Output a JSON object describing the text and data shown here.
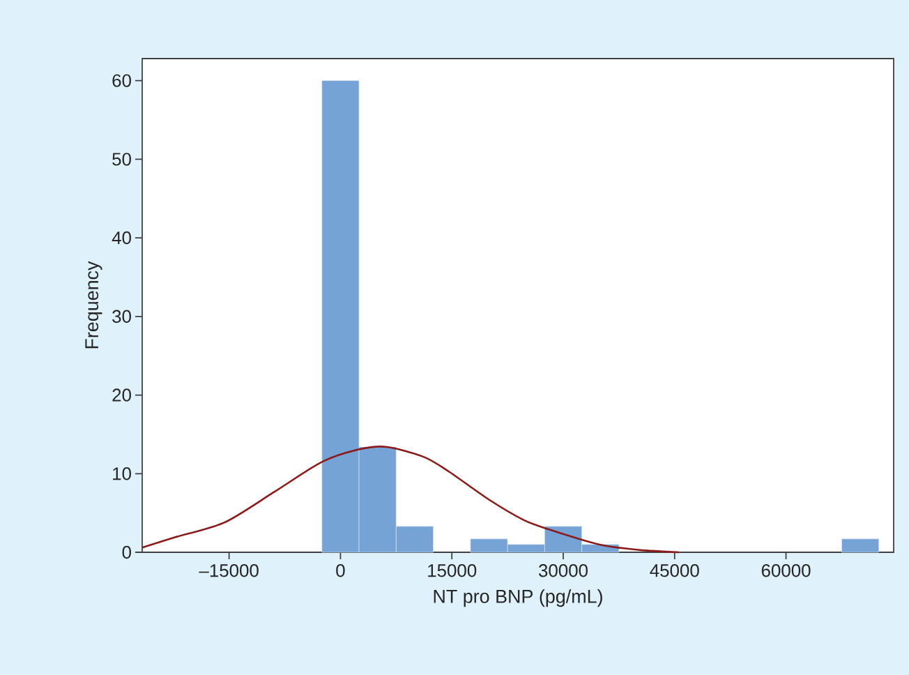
{
  "chart_data": {
    "type": "histogram",
    "xlabel": "NT pro BNP (pg/mL)",
    "ylabel": "Frequency",
    "color": "#76a3d6",
    "bins": [
      -2500,
      2500,
      7500,
      12500,
      17500,
      22500,
      27500,
      32500,
      37500,
      42500,
      47500,
      52500,
      57500,
      62500,
      67500,
      72500
    ],
    "values": [
      60,
      13.4,
      3.3,
      0,
      1.7,
      1,
      3.3,
      1,
      0,
      0,
      0,
      0,
      0,
      0,
      1.7
    ],
    "series": [
      {
        "type": "line",
        "color": "#8b1a1a",
        "x": [
          -26700,
          -22300,
          -15600,
          -8880,
          -2490,
          2550,
          6250,
          11300,
          14700,
          20000,
          24700,
          28100,
          34800,
          40200,
          45600
        ],
        "values": [
          0.6,
          1.9,
          3.8,
          7.7,
          11.5,
          13.1,
          13.4,
          12.1,
          10.2,
          6.7,
          4.1,
          2.9,
          1,
          0.3,
          0
        ]
      }
    ],
    "xlim": [
      -26700,
      74500
    ],
    "ylim": [
      0,
      62.8
    ],
    "xticks": [
      {
        "value": -15000,
        "label": "–15000"
      },
      0,
      15000,
      30000,
      45000,
      60000
    ],
    "yticks": [
      0,
      10,
      20,
      30,
      40,
      50,
      60
    ],
    "grid": false
  }
}
